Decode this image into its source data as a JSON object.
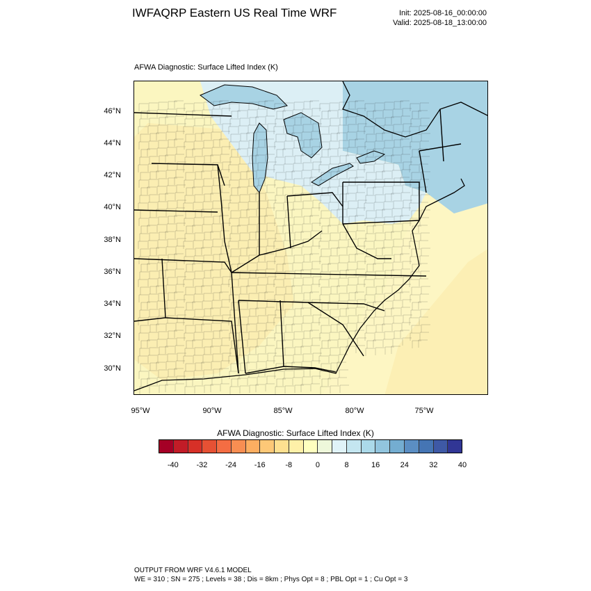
{
  "header": {
    "title": "IWFAQRP Eastern US Real Time WRF",
    "init": "Init: 2025-08-16_00:00:00",
    "valid": "Valid: 2025-08-18_13:00:00"
  },
  "map": {
    "field_label": "AFWA Diagnostic: Surface Lifted Index   (K)",
    "lat_labels": [
      "46°N",
      "44°N",
      "42°N",
      "40°N",
      "38°N",
      "36°N",
      "34°N",
      "32°N",
      "30°N"
    ],
    "lon_labels": [
      "95°W",
      "90°W",
      "85°W",
      "80°W",
      "75°W"
    ],
    "colors": {
      "land_north": "#dceff5",
      "land_south": "#fbf6c0",
      "land_warm": "#fbe9a8",
      "lakes_canada": "#a8d3e4",
      "ocean_north": "#a8d3e4",
      "ocean_south": "#fdf6c3",
      "county_lines": "#222222",
      "state_lines": "#000000"
    }
  },
  "colorbar": {
    "title": "AFWA Diagnostic: Surface Lifted Index  (K)",
    "colors": [
      "#a50026",
      "#c21c27",
      "#d73027",
      "#e65134",
      "#f46d43",
      "#f88e52",
      "#fdae61",
      "#fdc877",
      "#fee090",
      "#fef0a8",
      "#ffffbf",
      "#eef8da",
      "#e0f3f8",
      "#c4e6f0",
      "#abd9e9",
      "#92c5de",
      "#74add1",
      "#5b8ec3",
      "#4575b4",
      "#3e59a6",
      "#313695"
    ],
    "labels": [
      "-40",
      "-32",
      "-24",
      "-16",
      "-8",
      "0",
      "8",
      "16",
      "24",
      "32",
      "40"
    ]
  },
  "footer": {
    "line1": "OUTPUT FROM WRF V4.6.1 MODEL",
    "line2": "WE = 310 ; SN = 275 ; Levels = 38 ; Dis = 8km ; Phys Opt = 8 ; PBL Opt = 1 ; Cu Opt = 3"
  }
}
